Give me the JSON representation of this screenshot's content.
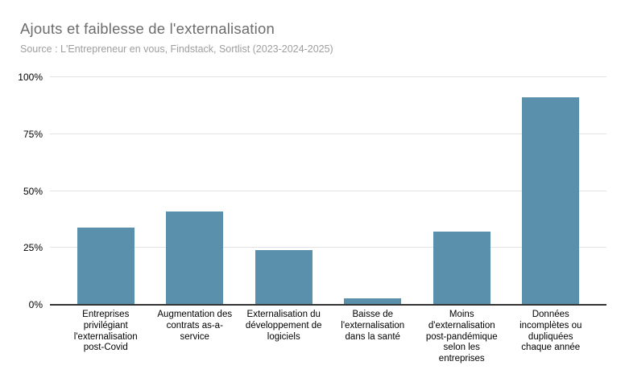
{
  "chart": {
    "title": "Ajouts et faiblesse de l'externalisation",
    "subtitle": "Source : L'Entrepreneur en vous, Findstack, Sortlist (2023-2024-2025)"
  },
  "chart_data": {
    "type": "bar",
    "title": "Ajouts et faiblesse de l'externalisation",
    "subtitle": "Source : L'Entrepreneur en vous, Findstack, Sortlist (2023-2024-2025)",
    "categories": [
      "Entreprises privilégiant l'externalisation post-Covid",
      "Augmentation des contrats as-a-service",
      "Externalisation du développement de logiciels",
      "Baisse de l'externalisation dans la santé",
      "Moins d'externalisation post-pandémique selon les entreprises",
      "Données incomplètes ou dupliquées chaque année"
    ],
    "categories_lines": [
      [
        "Entreprises",
        "privilégiant",
        "l'externalisation",
        "post-Covid"
      ],
      [
        "Augmentation des",
        "contrats as-a-",
        "service"
      ],
      [
        "Externalisation du",
        "développement de",
        "logiciels"
      ],
      [
        "Baisse de",
        "l'externalisation",
        "dans la santé"
      ],
      [
        "Moins",
        "d'externalisation",
        "post-pandémique",
        "selon les",
        "entreprises"
      ],
      [
        "Données",
        "incomplètes ou",
        "dupliquées",
        "chaque année"
      ]
    ],
    "values": [
      34,
      41,
      24,
      3,
      32,
      91
    ],
    "unit": "%",
    "xlabel": "",
    "ylabel": "",
    "ylim": [
      0,
      100
    ],
    "yticks": [
      {
        "value": 0,
        "label": "0%"
      },
      {
        "value": 25,
        "label": "25%"
      },
      {
        "value": 50,
        "label": "50%"
      },
      {
        "value": 75,
        "label": "75%"
      },
      {
        "value": 100,
        "label": "100%"
      }
    ],
    "grid": true,
    "legend": "none",
    "colors": {
      "bar": "#5b90ac",
      "gridline": "#e2e2e2",
      "axis": "#333333",
      "title_text": "#6d6d6d",
      "subtitle_text": "#9e9e9e",
      "tick_text": "#000000"
    }
  }
}
